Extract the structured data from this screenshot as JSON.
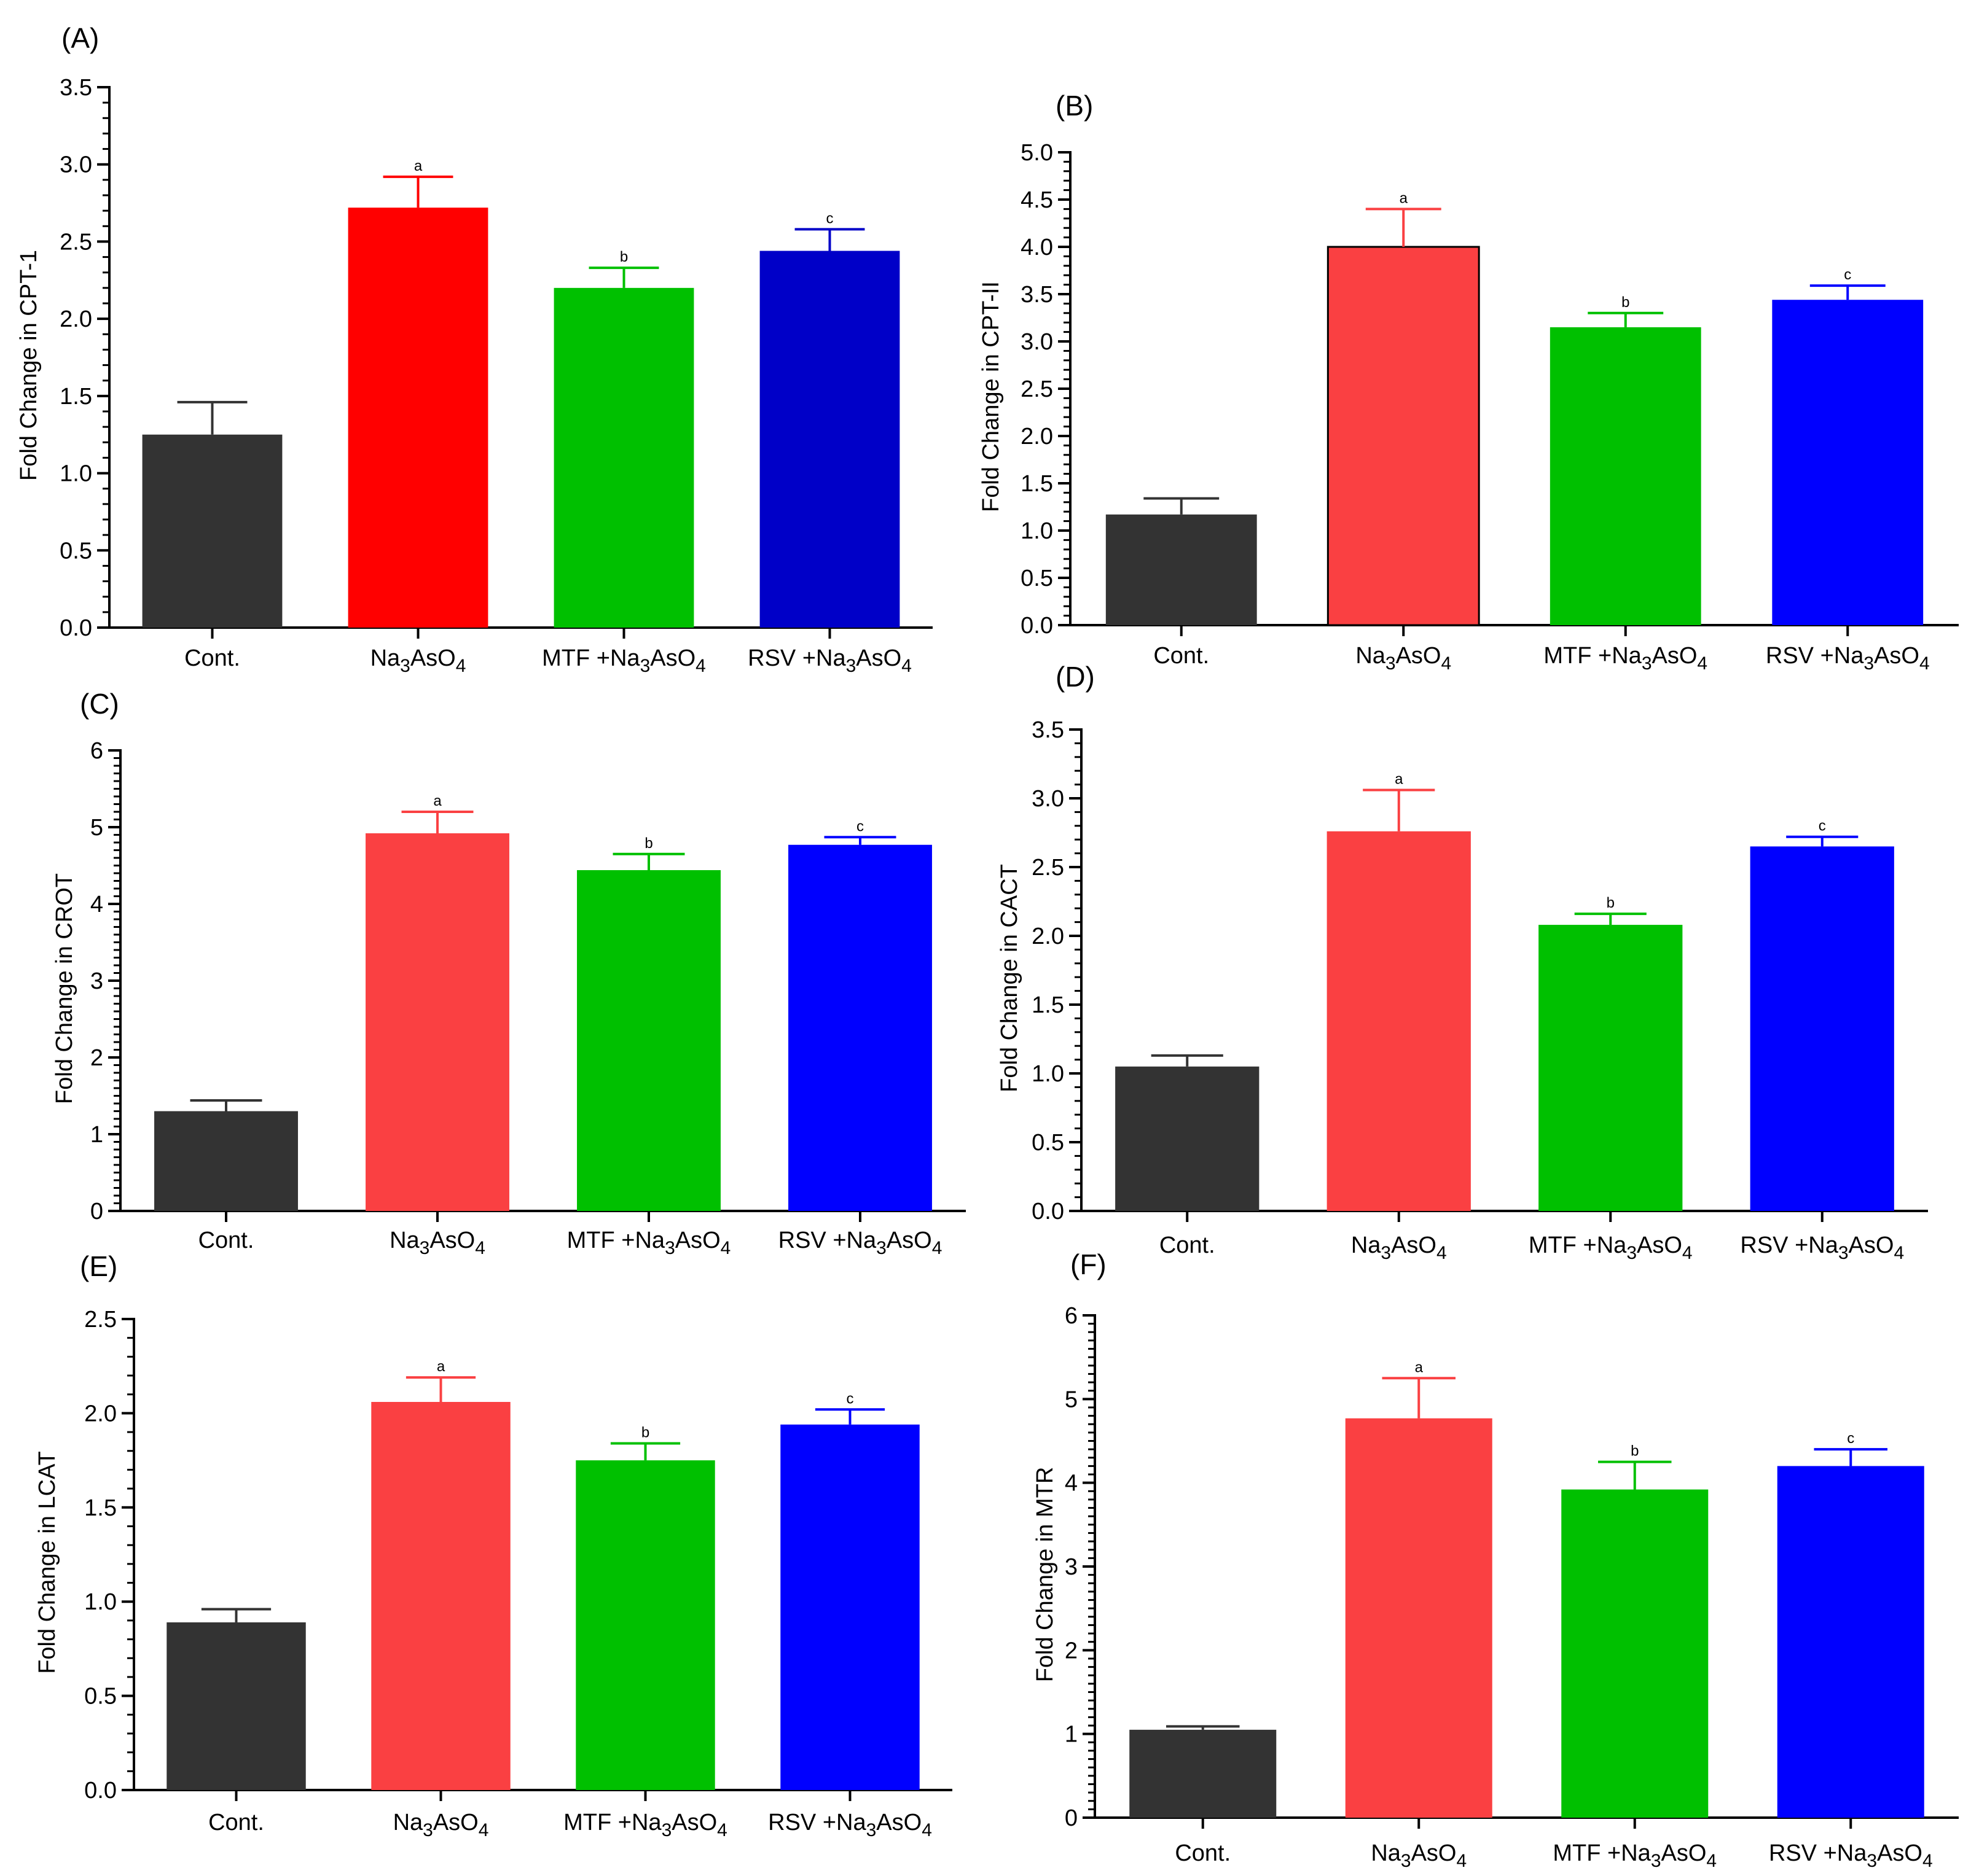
{
  "chart_data": [
    {
      "type": "bar",
      "panel": "(A)",
      "ylabel": "Fold Change in CPT-1",
      "ylim": [
        0,
        3.5
      ],
      "yticks": [
        "0.0",
        "0.5",
        "1.0",
        "1.5",
        "2.0",
        "2.5",
        "3.0",
        "3.5"
      ],
      "categories": [
        {
          "pre": "Cont.",
          "sub": "",
          "mid": "",
          "sub2": ""
        },
        {
          "pre": "Na",
          "sub": "3",
          "mid": "AsO",
          "sub2": "4"
        },
        {
          "pre": "MTF +Na",
          "sub": "3",
          "mid": "AsO",
          "sub2": "4"
        },
        {
          "pre": "RSV +Na",
          "sub": "3",
          "mid": "AsO",
          "sub2": "4"
        }
      ],
      "values": [
        1.25,
        2.72,
        2.2,
        2.44
      ],
      "errors": [
        0.21,
        0.2,
        0.13,
        0.14
      ],
      "sig": [
        "",
        "a",
        "b",
        "c"
      ],
      "colors": [
        "#333333",
        "#ff0000",
        "#00c000",
        "#0000c8"
      ]
    },
    {
      "type": "bar",
      "panel": "(B)",
      "ylabel": "Fold Change in CPT-II",
      "ylim": [
        0,
        5.0
      ],
      "yticks": [
        "0.0",
        "0.5",
        "1.0",
        "1.5",
        "2.0",
        "2.5",
        "3.0",
        "3.5",
        "4.0",
        "4.5",
        "5.0"
      ],
      "categories": [
        {
          "pre": "Cont.",
          "sub": "",
          "mid": "",
          "sub2": ""
        },
        {
          "pre": "Na",
          "sub": "3",
          "mid": "AsO",
          "sub2": "4"
        },
        {
          "pre": "MTF +Na",
          "sub": "3",
          "mid": "AsO",
          "sub2": "4"
        },
        {
          "pre": "RSV +Na",
          "sub": "3",
          "mid": "AsO",
          "sub2": "4"
        }
      ],
      "values": [
        1.17,
        4.0,
        3.15,
        3.44
      ],
      "errors": [
        0.17,
        0.4,
        0.15,
        0.15
      ],
      "sig": [
        "",
        "a",
        "b",
        "c"
      ],
      "colors": [
        "#333333",
        "#fa4042",
        "#00c000",
        "#0000ff"
      ]
    },
    {
      "type": "bar",
      "panel": "(C)",
      "ylabel": "Fold Change in  CROT",
      "ylim": [
        0,
        6
      ],
      "yticks": [
        "0",
        "1",
        "2",
        "3",
        "4",
        "5",
        "6"
      ],
      "categories": [
        {
          "pre": "Cont.",
          "sub": "",
          "mid": "",
          "sub2": ""
        },
        {
          "pre": "Na",
          "sub": "3",
          "mid": "AsO",
          "sub2": "4"
        },
        {
          "pre": "MTF +Na",
          "sub": "3",
          "mid": "AsO",
          "sub2": "4"
        },
        {
          "pre": "RSV +Na",
          "sub": "3",
          "mid": "AsO",
          "sub2": "4"
        }
      ],
      "values": [
        1.3,
        4.92,
        4.44,
        4.77
      ],
      "errors": [
        0.14,
        0.28,
        0.21,
        0.1
      ],
      "sig": [
        "",
        "a",
        "b",
        "c"
      ],
      "colors": [
        "#333333",
        "#fa4042",
        "#00c000",
        "#0000ff"
      ]
    },
    {
      "type": "bar",
      "panel": "(D)",
      "ylabel": "Fold Change in CACT",
      "ylim": [
        0,
        3.5
      ],
      "yticks": [
        "0.0",
        "0.5",
        "1.0",
        "1.5",
        "2.0",
        "2.5",
        "3.0",
        "3.5"
      ],
      "categories": [
        {
          "pre": "Cont.",
          "sub": "",
          "mid": "",
          "sub2": ""
        },
        {
          "pre": "Na",
          "sub": "3",
          "mid": "AsO",
          "sub2": "4"
        },
        {
          "pre": "MTF +Na",
          "sub": "3",
          "mid": "AsO",
          "sub2": "4"
        },
        {
          "pre": "RSV +Na",
          "sub": "3",
          "mid": "AsO",
          "sub2": "4"
        }
      ],
      "values": [
        1.05,
        2.76,
        2.08,
        2.65
      ],
      "errors": [
        0.08,
        0.3,
        0.08,
        0.07
      ],
      "sig": [
        "",
        "a",
        "b",
        "c"
      ],
      "colors": [
        "#333333",
        "#fa4042",
        "#00c000",
        "#0000ff"
      ]
    },
    {
      "type": "bar",
      "panel": "(E)",
      "ylabel": "Fold Change in LCAT",
      "ylim": [
        0,
        2.5
      ],
      "yticks": [
        "0.0",
        "0.5",
        "1.0",
        "1.5",
        "2.0",
        "2.5"
      ],
      "categories": [
        {
          "pre": "Cont.",
          "sub": "",
          "mid": "",
          "sub2": ""
        },
        {
          "pre": "Na",
          "sub": "3",
          "mid": "AsO",
          "sub2": "4"
        },
        {
          "pre": "MTF +Na",
          "sub": "3",
          "mid": "AsO",
          "sub2": "4"
        },
        {
          "pre": "RSV +Na",
          "sub": "3",
          "mid": "AsO",
          "sub2": "4"
        }
      ],
      "values": [
        0.89,
        2.06,
        1.75,
        1.94
      ],
      "errors": [
        0.07,
        0.13,
        0.09,
        0.08
      ],
      "sig": [
        "",
        "a",
        "b",
        "c"
      ],
      "colors": [
        "#333333",
        "#fa4042",
        "#00c000",
        "#0000ff"
      ]
    },
    {
      "type": "bar",
      "panel": "(F)",
      "ylabel": "Fold Change in MTR",
      "ylim": [
        0,
        6
      ],
      "yticks": [
        "0",
        "1",
        "2",
        "3",
        "4",
        "5",
        "6"
      ],
      "categories": [
        {
          "pre": "Cont.",
          "sub": "",
          "mid": "",
          "sub2": ""
        },
        {
          "pre": "Na",
          "sub": "3",
          "mid": "AsO",
          "sub2": "4"
        },
        {
          "pre": "MTF +Na",
          "sub": "3",
          "mid": "AsO",
          "sub2": "4"
        },
        {
          "pre": "RSV +Na",
          "sub": "3",
          "mid": "AsO",
          "sub2": "4"
        }
      ],
      "values": [
        1.05,
        4.77,
        3.92,
        4.2
      ],
      "errors": [
        0.04,
        0.48,
        0.33,
        0.2
      ],
      "sig": [
        "",
        "a",
        "b",
        "c"
      ],
      "colors": [
        "#333333",
        "#fa4042",
        "#00c000",
        "#0000ff"
      ]
    }
  ]
}
